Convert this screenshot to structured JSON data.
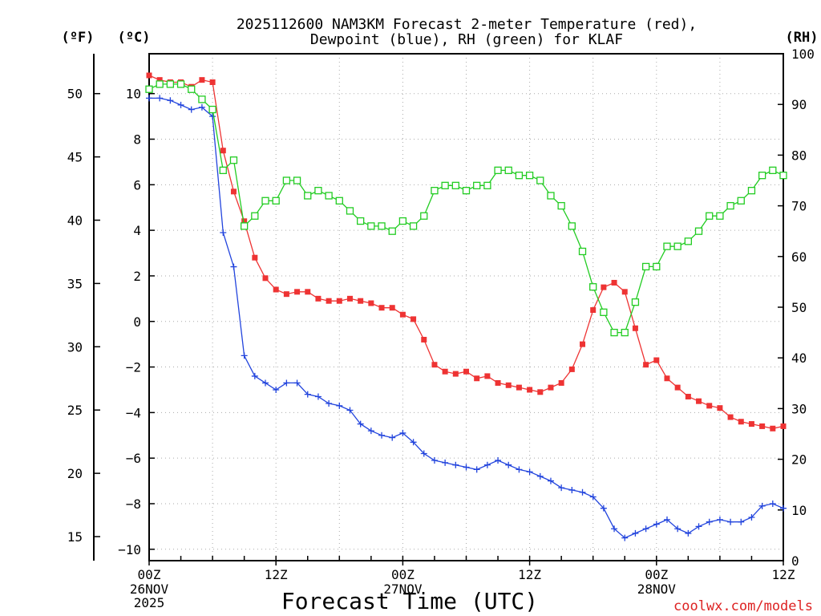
{
  "chart_data": {
    "type": "line",
    "title": "2025112600 NAM3KM Forecast 2-meter Temperature (red),",
    "title_line2": "Dewpoint (blue), RH (green) for KLAF",
    "xlabel": "Forecast Time (UTC)",
    "credit": "coolwx.com/models",
    "left_outer_label": "(ºF)",
    "left_label": "(ºC)",
    "right_label": "(RH)",
    "celsius_range": [
      -10.5,
      11.75
    ],
    "celsius_ticks": [
      10,
      8,
      6,
      4,
      2,
      0,
      -2,
      -4,
      -6,
      -8,
      -10
    ],
    "fahrenheit_ticks": [
      50,
      45,
      40,
      35,
      30,
      25,
      20,
      15
    ],
    "rh_range": [
      0,
      100
    ],
    "rh_ticks": [
      100,
      90,
      80,
      70,
      60,
      50,
      40,
      30,
      20,
      10,
      0
    ],
    "x_range_hours": [
      0,
      60
    ],
    "x_ticks": [
      {
        "hour": 0,
        "label": "00Z",
        "sub1": "26NOV",
        "sub2": "2025"
      },
      {
        "hour": 12,
        "label": "12Z",
        "sub1": "",
        "sub2": ""
      },
      {
        "hour": 24,
        "label": "00Z",
        "sub1": "27NOV",
        "sub2": ""
      },
      {
        "hour": 36,
        "label": "12Z",
        "sub1": "",
        "sub2": ""
      },
      {
        "hour": 48,
        "label": "00Z",
        "sub1": "28NOV",
        "sub2": ""
      },
      {
        "hour": 60,
        "label": "12Z",
        "sub1": "",
        "sub2": ""
      }
    ],
    "colors": {
      "temperature": "#ee3333",
      "dewpoint": "#2244dd",
      "rh": "#22cc22",
      "grid": "#aaaaaa"
    },
    "series": [
      {
        "name": "Temperature (°C)",
        "axis": "celsius",
        "marker": "filled-square",
        "x": [
          0,
          1,
          2,
          3,
          4,
          5,
          6,
          7,
          8,
          9,
          10,
          11,
          12,
          13,
          14,
          15,
          16,
          17,
          18,
          19,
          20,
          21,
          22,
          23,
          24,
          25,
          26,
          27,
          28,
          29,
          30,
          31,
          32,
          33,
          34,
          35,
          36,
          37,
          38,
          39,
          40,
          41,
          42,
          43,
          44,
          45,
          46,
          47,
          48,
          49,
          50,
          51,
          52,
          53,
          54,
          55,
          56,
          57,
          58,
          59,
          60
        ],
        "values": [
          10.8,
          10.6,
          10.5,
          10.5,
          10.3,
          10.6,
          10.5,
          7.5,
          5.7,
          4.4,
          2.8,
          1.9,
          1.4,
          1.2,
          1.3,
          1.3,
          1.0,
          0.9,
          0.9,
          1.0,
          0.9,
          0.8,
          0.6,
          0.6,
          0.3,
          0.1,
          -0.8,
          -1.9,
          -2.2,
          -2.3,
          -2.2,
          -2.5,
          -2.4,
          -2.7,
          -2.8,
          -2.9,
          -3.0,
          -3.1,
          -2.9,
          -2.7,
          -2.1,
          -1.0,
          0.5,
          1.5,
          1.7,
          1.3,
          -0.3,
          -1.9,
          -1.7,
          -2.5,
          -2.9,
          -3.3,
          -3.5,
          -3.7,
          -3.8,
          -4.2,
          -4.4,
          -4.5,
          -4.6,
          -4.7,
          -4.6
        ]
      },
      {
        "name": "Dewpoint (°C)",
        "axis": "celsius",
        "marker": "plus",
        "x": [
          0,
          1,
          2,
          3,
          4,
          5,
          6,
          7,
          8,
          9,
          10,
          11,
          12,
          13,
          14,
          15,
          16,
          17,
          18,
          19,
          20,
          21,
          22,
          23,
          24,
          25,
          26,
          27,
          28,
          29,
          30,
          31,
          32,
          33,
          34,
          35,
          36,
          37,
          38,
          39,
          40,
          41,
          42,
          43,
          44,
          45,
          46,
          47,
          48,
          49,
          50,
          51,
          52,
          53,
          54,
          55,
          56,
          57,
          58,
          59,
          60
        ],
        "values": [
          9.8,
          9.8,
          9.7,
          9.5,
          9.3,
          9.4,
          9.0,
          3.9,
          2.4,
          -1.5,
          -2.4,
          -2.7,
          -3.0,
          -2.7,
          -2.7,
          -3.2,
          -3.3,
          -3.6,
          -3.7,
          -3.9,
          -4.5,
          -4.8,
          -5.0,
          -5.1,
          -4.9,
          -5.3,
          -5.8,
          -6.1,
          -6.2,
          -6.3,
          -6.4,
          -6.5,
          -6.3,
          -6.1,
          -6.3,
          -6.5,
          -6.6,
          -6.8,
          -7.0,
          -7.3,
          -7.4,
          -7.5,
          -7.7,
          -8.2,
          -9.1,
          -9.5,
          -9.3,
          -9.1,
          -8.9,
          -8.7,
          -9.1,
          -9.3,
          -9.0,
          -8.8,
          -8.7,
          -8.8,
          -8.8,
          -8.6,
          -8.1,
          -8.0,
          -8.2
        ]
      },
      {
        "name": "RH (%)",
        "axis": "rh",
        "marker": "open-square",
        "x": [
          0,
          1,
          2,
          3,
          4,
          5,
          6,
          7,
          8,
          9,
          10,
          11,
          12,
          13,
          14,
          15,
          16,
          17,
          18,
          19,
          20,
          21,
          22,
          23,
          24,
          25,
          26,
          27,
          28,
          29,
          30,
          31,
          32,
          33,
          34,
          35,
          36,
          37,
          38,
          39,
          40,
          41,
          42,
          43,
          44,
          45,
          46,
          47,
          48,
          49,
          50,
          51,
          52,
          53,
          54,
          55,
          56,
          57,
          58,
          59,
          60
        ],
        "values": [
          93,
          94,
          94,
          94,
          93,
          91,
          89,
          77,
          79,
          66,
          68,
          71,
          71,
          75,
          75,
          72,
          73,
          72,
          71,
          69,
          67,
          66,
          66,
          65,
          67,
          66,
          68,
          73,
          74,
          74,
          73,
          74,
          74,
          77,
          77,
          76,
          76,
          75,
          72,
          70,
          66,
          61,
          54,
          49,
          45,
          45,
          51,
          58,
          58,
          62,
          62,
          63,
          65,
          68,
          68,
          70,
          71,
          73,
          76,
          77,
          76
        ]
      }
    ]
  }
}
